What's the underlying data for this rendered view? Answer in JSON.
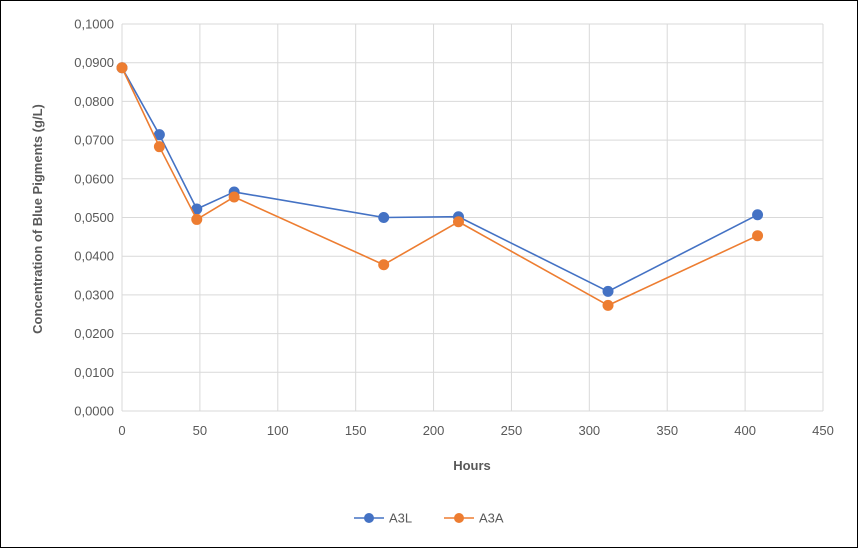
{
  "chart_data": {
    "type": "line",
    "title": "",
    "xlabel": "Hours",
    "ylabel": "Concentration of Blue Pigments (g/L)",
    "xlim": [
      0,
      450
    ],
    "ylim": [
      0,
      0.1
    ],
    "x_ticks": [
      "0",
      "50",
      "100",
      "150",
      "200",
      "250",
      "300",
      "350",
      "400",
      "450"
    ],
    "y_ticks": [
      "0,0000",
      "0,0100",
      "0,0200",
      "0,0300",
      "0,0400",
      "0,0500",
      "0,0600",
      "0,0700",
      "0,0800",
      "0,0900",
      "0,1000"
    ],
    "grid": "vertical-and-horizontal",
    "legend_position": "bottom",
    "series": [
      {
        "name": "A3L",
        "color": "#4472C4",
        "x": [
          0,
          24,
          48,
          72,
          168,
          216,
          312,
          408
        ],
        "y": [
          0.0887,
          0.0714,
          0.0522,
          0.0566,
          0.05,
          0.0502,
          0.0309,
          0.0507
        ]
      },
      {
        "name": "A3A",
        "color": "#ED7D31",
        "x": [
          0,
          24,
          48,
          72,
          168,
          216,
          312,
          408
        ],
        "y": [
          0.0887,
          0.0683,
          0.0495,
          0.0553,
          0.0378,
          0.0489,
          0.0273,
          0.0453
        ]
      }
    ]
  }
}
